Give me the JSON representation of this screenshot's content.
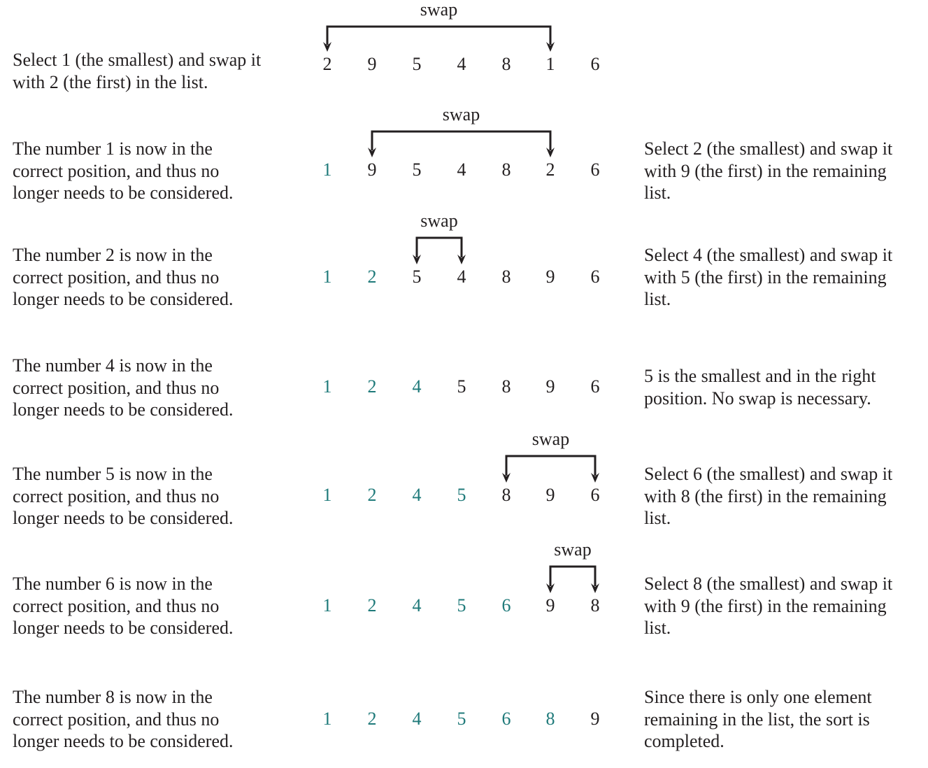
{
  "swap_label": "swap",
  "sorted_color": "#1f7a7a",
  "steps": [
    {
      "left": "Select 1 (the smallest) and swap it\nwith 2 (the first) in the list.",
      "right": "",
      "values": [
        "2",
        "9",
        "5",
        "4",
        "8",
        "1",
        "6"
      ],
      "sorted_count": 0,
      "swap": [
        0,
        5
      ]
    },
    {
      "left": "The number 1 is now in the\ncorrect position, and thus no\nlonger needs to be considered.",
      "right": "Select 2 (the smallest) and swap it\nwith 9 (the first) in the remaining\nlist.",
      "values": [
        "1",
        "9",
        "5",
        "4",
        "8",
        "2",
        "6"
      ],
      "sorted_count": 1,
      "swap": [
        1,
        5
      ]
    },
    {
      "left": "The number 2 is now in the\ncorrect position, and thus no\nlonger needs to be considered.",
      "right": "Select 4 (the smallest) and swap it\nwith 5 (the first) in the remaining\nlist.",
      "values": [
        "1",
        "2",
        "5",
        "4",
        "8",
        "9",
        "6"
      ],
      "sorted_count": 2,
      "swap": [
        2,
        3
      ]
    },
    {
      "left": "The number 4 is now in the\ncorrect position, and thus no\nlonger needs to be considered.",
      "right": "5 is the smallest and in the right\nposition. No swap is necessary.",
      "values": [
        "1",
        "2",
        "4",
        "5",
        "8",
        "9",
        "6"
      ],
      "sorted_count": 3,
      "swap": null
    },
    {
      "left": "The number 5 is now in the\ncorrect position, and thus no\nlonger needs to be considered.",
      "right": "Select 6 (the smallest) and swap it\nwith 8 (the first) in the remaining\nlist.",
      "values": [
        "1",
        "2",
        "4",
        "5",
        "8",
        "9",
        "6"
      ],
      "sorted_count": 4,
      "swap": [
        4,
        6
      ]
    },
    {
      "left": "The number 6 is now in the\ncorrect position, and thus no\nlonger needs to be considered.",
      "right": "Select 8 (the smallest) and swap it\nwith 9 (the first) in the remaining\nlist.",
      "values": [
        "1",
        "2",
        "4",
        "5",
        "6",
        "9",
        "8"
      ],
      "sorted_count": 5,
      "swap": [
        5,
        6
      ]
    },
    {
      "left": "The number 8 is now in the\ncorrect position, and thus no\nlonger needs to be considered.",
      "right": "Since there is only one element\nremaining in the list, the sort is\ncompleted.",
      "values": [
        "1",
        "2",
        "4",
        "5",
        "6",
        "8",
        "9"
      ],
      "sorted_count": 6,
      "swap": null
    }
  ]
}
